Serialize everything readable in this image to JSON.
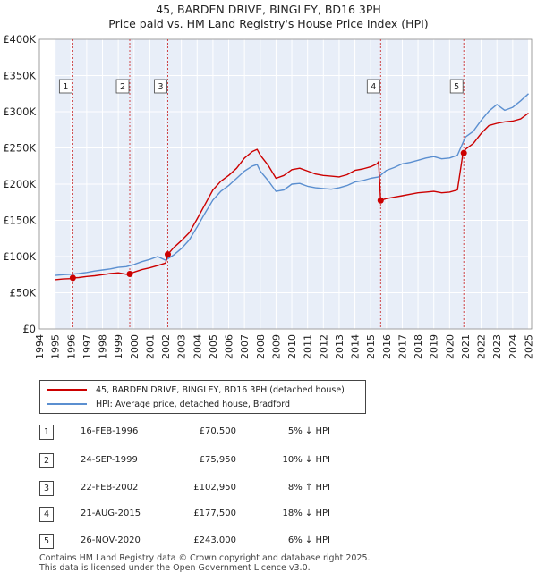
{
  "title_line1": "45, BARDEN DRIVE, BINGLEY, BD16 3PH",
  "title_line2": "Price paid vs. HM Land Registry's House Price Index (HPI)",
  "colors": {
    "property": "#cc0000",
    "hpi": "#5b8fd0",
    "shade": "#e8eef8",
    "grid": "#ffffff",
    "vline": "#cc3333"
  },
  "chart_data": {
    "type": "line",
    "title": "45, BARDEN DRIVE, BINGLEY, BD16 3PH — Price paid vs. HM Land Registry's House Price Index (HPI)",
    "xlabel": "",
    "ylabel": "",
    "xlim": [
      1994,
      2025.2
    ],
    "ylim": [
      0,
      400000
    ],
    "y_ticks": [
      0,
      50000,
      100000,
      150000,
      200000,
      250000,
      300000,
      350000,
      400000
    ],
    "y_tick_labels": [
      "£0",
      "£50K",
      "£100K",
      "£150K",
      "£200K",
      "£250K",
      "£300K",
      "£350K",
      "£400K"
    ],
    "x_ticks": [
      "1994",
      "1995",
      "1996",
      "1997",
      "1998",
      "1999",
      "2000",
      "2001",
      "2002",
      "2003",
      "2004",
      "2005",
      "2006",
      "2007",
      "2008",
      "2009",
      "2010",
      "2011",
      "2012",
      "2013",
      "2014",
      "2015",
      "2016",
      "2017",
      "2018",
      "2019",
      "2020",
      "2021",
      "2022",
      "2023",
      "2024",
      "2025"
    ],
    "data_available_range": [
      1995.0,
      2025.0
    ],
    "series": [
      {
        "name": "45, BARDEN DRIVE, BINGLEY, BD16 3PH (detached house)",
        "color": "#cc0000",
        "x": [
          1995.0,
          1995.5,
          1996.0,
          1996.12,
          1996.5,
          1997.0,
          1997.5,
          1998.0,
          1998.5,
          1999.0,
          1999.5,
          1999.73,
          2000.0,
          2000.5,
          2001.0,
          2001.5,
          2002.0,
          2002.14,
          2002.5,
          2003.0,
          2003.5,
          2004.0,
          2004.5,
          2005.0,
          2005.5,
          2006.0,
          2006.5,
          2007.0,
          2007.5,
          2007.8,
          2008.0,
          2008.5,
          2009.0,
          2009.5,
          2010.0,
          2010.5,
          2011.0,
          2011.5,
          2012.0,
          2012.5,
          2013.0,
          2013.5,
          2014.0,
          2014.5,
          2015.0,
          2015.4,
          2015.5,
          2015.63,
          2016.0,
          2016.5,
          2017.0,
          2017.5,
          2018.0,
          2018.5,
          2019.0,
          2019.5,
          2020.0,
          2020.5,
          2020.85,
          2020.9,
          2021.0,
          2021.5,
          2022.0,
          2022.5,
          2023.0,
          2023.5,
          2024.0,
          2024.5,
          2025.0
        ],
        "values": [
          68000,
          69000,
          69500,
          70500,
          71000,
          72500,
          73500,
          75000,
          76500,
          77500,
          75500,
          75950,
          78500,
          82000,
          84500,
          87500,
          91000,
          102950,
          112000,
          122000,
          133000,
          152000,
          172000,
          192000,
          204000,
          212000,
          222000,
          236000,
          245000,
          248000,
          240000,
          226000,
          208000,
          212000,
          220000,
          222000,
          218000,
          214000,
          212000,
          211000,
          210000,
          213000,
          219000,
          221000,
          224000,
          228000,
          231000,
          177500,
          180000,
          182000,
          184000,
          186000,
          188000,
          189000,
          190000,
          188000,
          189000,
          192000,
          243000,
          243000,
          248000,
          256000,
          270000,
          281000,
          284000,
          286000,
          287000,
          290000,
          298000
        ]
      },
      {
        "name": "HPI: Average price, detached house, Bradford",
        "color": "#5b8fd0",
        "x": [
          1995.0,
          1995.5,
          1996.0,
          1996.5,
          1997.0,
          1997.5,
          1998.0,
          1998.5,
          1999.0,
          1999.5,
          2000.0,
          2000.5,
          2001.0,
          2001.5,
          2002.0,
          2002.5,
          2003.0,
          2003.5,
          2004.0,
          2004.5,
          2005.0,
          2005.5,
          2006.0,
          2006.5,
          2007.0,
          2007.5,
          2007.8,
          2008.0,
          2008.5,
          2009.0,
          2009.5,
          2010.0,
          2010.5,
          2011.0,
          2011.5,
          2012.0,
          2012.5,
          2013.0,
          2013.5,
          2014.0,
          2014.5,
          2015.0,
          2015.5,
          2016.0,
          2016.5,
          2017.0,
          2017.5,
          2018.0,
          2018.5,
          2019.0,
          2019.5,
          2020.0,
          2020.5,
          2021.0,
          2021.5,
          2022.0,
          2022.5,
          2023.0,
          2023.5,
          2024.0,
          2024.5,
          2025.0
        ],
        "values": [
          74000,
          75000,
          75500,
          76500,
          78000,
          80000,
          81500,
          83000,
          85000,
          86000,
          89000,
          93000,
          96000,
          100000,
          95000,
          102000,
          111000,
          123000,
          141000,
          160000,
          178000,
          190000,
          198000,
          208000,
          218000,
          225000,
          227000,
          218000,
          205000,
          190000,
          192000,
          200000,
          201000,
          197000,
          195000,
          194000,
          193000,
          195000,
          198000,
          203000,
          205000,
          208000,
          210000,
          219000,
          223000,
          228000,
          230000,
          233000,
          236000,
          238000,
          235000,
          236000,
          240000,
          265000,
          273000,
          288000,
          301000,
          310000,
          302000,
          306000,
          315000,
          325000
        ]
      }
    ],
    "sales": [
      {
        "label": "1",
        "x": 1996.12,
        "value": 70500
      },
      {
        "label": "2",
        "x": 1999.73,
        "value": 75950
      },
      {
        "label": "3",
        "x": 2002.14,
        "value": 102950
      },
      {
        "label": "4",
        "x": 2015.63,
        "value": 177500
      },
      {
        "label": "5",
        "x": 2020.9,
        "value": 243000
      }
    ]
  },
  "legend": {
    "property": "45, BARDEN DRIVE, BINGLEY, BD16 3PH (detached house)",
    "hpi": "HPI: Average price, detached house, Bradford"
  },
  "sales_table": [
    {
      "num": "1",
      "date": "16-FEB-1996",
      "price": "£70,500",
      "hpi": "5% ↓ HPI"
    },
    {
      "num": "2",
      "date": "24-SEP-1999",
      "price": "£75,950",
      "hpi": "10% ↓ HPI"
    },
    {
      "num": "3",
      "date": "22-FEB-2002",
      "price": "£102,950",
      "hpi": "8% ↑ HPI"
    },
    {
      "num": "4",
      "date": "21-AUG-2015",
      "price": "£177,500",
      "hpi": "18% ↓ HPI"
    },
    {
      "num": "5",
      "date": "26-NOV-2020",
      "price": "£243,000",
      "hpi": "6% ↓ HPI"
    }
  ],
  "footer_line1": "Contains HM Land Registry data © Crown copyright and database right 2025.",
  "footer_line2": "This data is licensed under the Open Government Licence v3.0."
}
